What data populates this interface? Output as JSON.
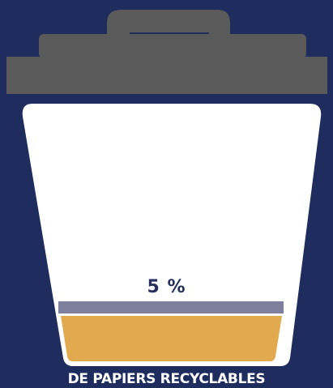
{
  "infographic": {
    "percentage_label": "5 %",
    "fill_level_percent": 5,
    "caption": "DE PAPIERS RECYCLABLES"
  },
  "colors": {
    "background": "#1e2d5e",
    "lid": "#5a5a5a",
    "bin_body": "#ffffff",
    "level_bar": "#7f7f9e",
    "fill": "#e1aa4f",
    "percentage_text": "#26305c",
    "caption_text": "#ffffff"
  },
  "icons": {
    "bin": "trash-bin-icon"
  }
}
